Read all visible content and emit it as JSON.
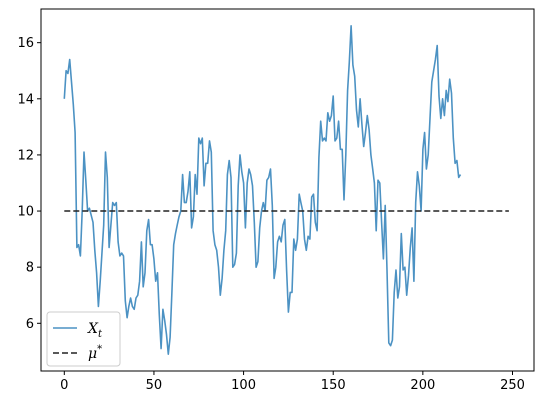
{
  "chart_data": {
    "type": "line",
    "title": "",
    "xlabel": "",
    "ylabel": "",
    "xlim": [
      -13,
      262
    ],
    "ylim": [
      4.3,
      17.2
    ],
    "x_ticks": [
      0,
      50,
      100,
      150,
      200,
      250
    ],
    "y_ticks": [
      6,
      8,
      10,
      12,
      14,
      16
    ],
    "grid": false,
    "legend_position": "lower-left",
    "series": [
      {
        "name": "X_t",
        "label_main": "X",
        "label_sub": "t",
        "style": "solid",
        "color": "#1f77b4",
        "points": [
          [
            0,
            14.0
          ],
          [
            1,
            15.0
          ],
          [
            2,
            14.9
          ],
          [
            3,
            15.4
          ],
          [
            4,
            14.6
          ],
          [
            5,
            13.8
          ],
          [
            6,
            12.8
          ],
          [
            7,
            8.7
          ],
          [
            8,
            8.8
          ],
          [
            9,
            8.4
          ],
          [
            10,
            10.0
          ],
          [
            11,
            12.1
          ],
          [
            12,
            11.1
          ],
          [
            13,
            10.0
          ],
          [
            14,
            10.1
          ],
          [
            16,
            9.6
          ],
          [
            17,
            8.6
          ],
          [
            18,
            7.8
          ],
          [
            19,
            6.6
          ],
          [
            20,
            7.5
          ],
          [
            22,
            9.5
          ],
          [
            23,
            12.1
          ],
          [
            24,
            11.2
          ],
          [
            25,
            8.7
          ],
          [
            26,
            9.5
          ],
          [
            27,
            10.3
          ],
          [
            28,
            10.2
          ],
          [
            29,
            10.3
          ],
          [
            30,
            8.9
          ],
          [
            31,
            8.4
          ],
          [
            32,
            8.5
          ],
          [
            33,
            8.4
          ],
          [
            34,
            6.8
          ],
          [
            35,
            6.2
          ],
          [
            36,
            6.6
          ],
          [
            37,
            6.9
          ],
          [
            38,
            6.6
          ],
          [
            39,
            6.5
          ],
          [
            40,
            6.9
          ],
          [
            41,
            7.0
          ],
          [
            42,
            7.5
          ],
          [
            43,
            8.9
          ],
          [
            44,
            7.3
          ],
          [
            45,
            7.8
          ],
          [
            46,
            9.3
          ],
          [
            47,
            9.7
          ],
          [
            48,
            8.8
          ],
          [
            49,
            8.8
          ],
          [
            50,
            8.3
          ],
          [
            51,
            7.5
          ],
          [
            52,
            7.8
          ],
          [
            53,
            6.3
          ],
          [
            54,
            5.1
          ],
          [
            55,
            6.5
          ],
          [
            56,
            6.1
          ],
          [
            57,
            5.6
          ],
          [
            58,
            4.9
          ],
          [
            59,
            5.5
          ],
          [
            60,
            7.1
          ],
          [
            61,
            8.8
          ],
          [
            62,
            9.2
          ],
          [
            63,
            9.5
          ],
          [
            64,
            9.8
          ],
          [
            65,
            10.0
          ],
          [
            66,
            11.3
          ],
          [
            67,
            10.3
          ],
          [
            68,
            10.3
          ],
          [
            69,
            10.7
          ],
          [
            70,
            11.4
          ],
          [
            71,
            9.4
          ],
          [
            72,
            9.8
          ],
          [
            73,
            11.3
          ],
          [
            74,
            10.6
          ],
          [
            75,
            12.6
          ],
          [
            76,
            12.4
          ],
          [
            77,
            12.6
          ],
          [
            78,
            10.9
          ],
          [
            79,
            11.7
          ],
          [
            80,
            11.7
          ],
          [
            81,
            12.5
          ],
          [
            82,
            12.1
          ],
          [
            83,
            9.3
          ],
          [
            84,
            8.8
          ],
          [
            85,
            8.6
          ],
          [
            86,
            8.0
          ],
          [
            87,
            7.0
          ],
          [
            88,
            7.6
          ],
          [
            89,
            8.6
          ],
          [
            90,
            9.3
          ],
          [
            91,
            11.3
          ],
          [
            92,
            11.8
          ],
          [
            93,
            11.2
          ],
          [
            94,
            8.0
          ],
          [
            95,
            8.1
          ],
          [
            96,
            8.5
          ],
          [
            97,
            10.9
          ],
          [
            98,
            12.0
          ],
          [
            99,
            11.4
          ],
          [
            100,
            11.0
          ],
          [
            101,
            9.4
          ],
          [
            102,
            11.0
          ],
          [
            103,
            11.5
          ],
          [
            104,
            11.3
          ],
          [
            105,
            10.9
          ],
          [
            106,
            9.6
          ],
          [
            107,
            8.0
          ],
          [
            108,
            8.2
          ],
          [
            109,
            9.4
          ],
          [
            110,
            10.0
          ],
          [
            111,
            10.3
          ],
          [
            112,
            10.0
          ],
          [
            113,
            11.1
          ],
          [
            114,
            11.2
          ],
          [
            115,
            11.5
          ],
          [
            116,
            10.2
          ],
          [
            117,
            7.6
          ],
          [
            118,
            8.0
          ],
          [
            119,
            8.9
          ],
          [
            120,
            9.1
          ],
          [
            121,
            8.9
          ],
          [
            122,
            9.5
          ],
          [
            123,
            9.7
          ],
          [
            124,
            7.9
          ],
          [
            125,
            6.4
          ],
          [
            126,
            7.1
          ],
          [
            127,
            7.1
          ],
          [
            128,
            9.0
          ],
          [
            129,
            8.6
          ],
          [
            130,
            9.0
          ],
          [
            131,
            10.6
          ],
          [
            132,
            10.3
          ],
          [
            133,
            10.0
          ],
          [
            134,
            9.0
          ],
          [
            135,
            8.6
          ],
          [
            136,
            9.1
          ],
          [
            137,
            9.0
          ],
          [
            138,
            10.5
          ],
          [
            139,
            10.6
          ],
          [
            140,
            9.6
          ],
          [
            141,
            9.3
          ],
          [
            142,
            11.9
          ],
          [
            143,
            13.2
          ],
          [
            144,
            12.5
          ],
          [
            145,
            12.6
          ],
          [
            146,
            12.5
          ],
          [
            147,
            13.5
          ],
          [
            148,
            13.2
          ],
          [
            149,
            13.4
          ],
          [
            150,
            14.1
          ],
          [
            151,
            12.5
          ],
          [
            152,
            12.6
          ],
          [
            153,
            13.2
          ],
          [
            154,
            12.2
          ],
          [
            155,
            12.2
          ],
          [
            156,
            10.4
          ],
          [
            157,
            12.0
          ],
          [
            158,
            14.3
          ],
          [
            159,
            15.3
          ],
          [
            160,
            16.6
          ],
          [
            161,
            15.2
          ],
          [
            162,
            14.8
          ],
          [
            163,
            13.6
          ],
          [
            164,
            13.0
          ],
          [
            165,
            14.0
          ],
          [
            166,
            13.1
          ],
          [
            167,
            12.3
          ],
          [
            168,
            12.8
          ],
          [
            169,
            13.4
          ],
          [
            170,
            12.9
          ],
          [
            171,
            12.0
          ],
          [
            172,
            11.5
          ],
          [
            173,
            11.0
          ],
          [
            174,
            9.3
          ],
          [
            175,
            11.1
          ],
          [
            176,
            11.0
          ],
          [
            177,
            9.6
          ],
          [
            178,
            8.3
          ],
          [
            179,
            10.2
          ],
          [
            180,
            7.9
          ],
          [
            181,
            5.3
          ],
          [
            182,
            5.2
          ],
          [
            183,
            5.4
          ],
          [
            184,
            7.1
          ],
          [
            185,
            7.9
          ],
          [
            186,
            6.9
          ],
          [
            187,
            7.3
          ],
          [
            188,
            9.2
          ],
          [
            189,
            7.9
          ],
          [
            190,
            8.0
          ],
          [
            191,
            7.0
          ],
          [
            192,
            7.7
          ],
          [
            193,
            8.7
          ],
          [
            194,
            9.4
          ],
          [
            195,
            7.5
          ],
          [
            196,
            10.3
          ],
          [
            197,
            11.4
          ],
          [
            198,
            10.9
          ],
          [
            199,
            10.0
          ],
          [
            200,
            12.2
          ],
          [
            201,
            12.8
          ],
          [
            202,
            11.5
          ],
          [
            203,
            12.0
          ],
          [
            204,
            13.3
          ],
          [
            205,
            14.6
          ],
          [
            206,
            15.0
          ],
          [
            207,
            15.4
          ],
          [
            208,
            15.9
          ],
          [
            209,
            14.1
          ],
          [
            210,
            13.3
          ],
          [
            211,
            14.0
          ],
          [
            212,
            13.4
          ],
          [
            213,
            14.3
          ],
          [
            214,
            13.9
          ],
          [
            215,
            14.7
          ],
          [
            216,
            14.2
          ],
          [
            217,
            12.6
          ],
          [
            218,
            11.7
          ],
          [
            219,
            11.8
          ],
          [
            220,
            11.2
          ],
          [
            221,
            11.3
          ]
        ]
      },
      {
        "name": "μ*",
        "label_main": "μ",
        "label_sup": "*",
        "style": "dashed",
        "color": "#222222",
        "points": [
          [
            0,
            10.0
          ],
          [
            248,
            10.0
          ]
        ]
      }
    ]
  }
}
